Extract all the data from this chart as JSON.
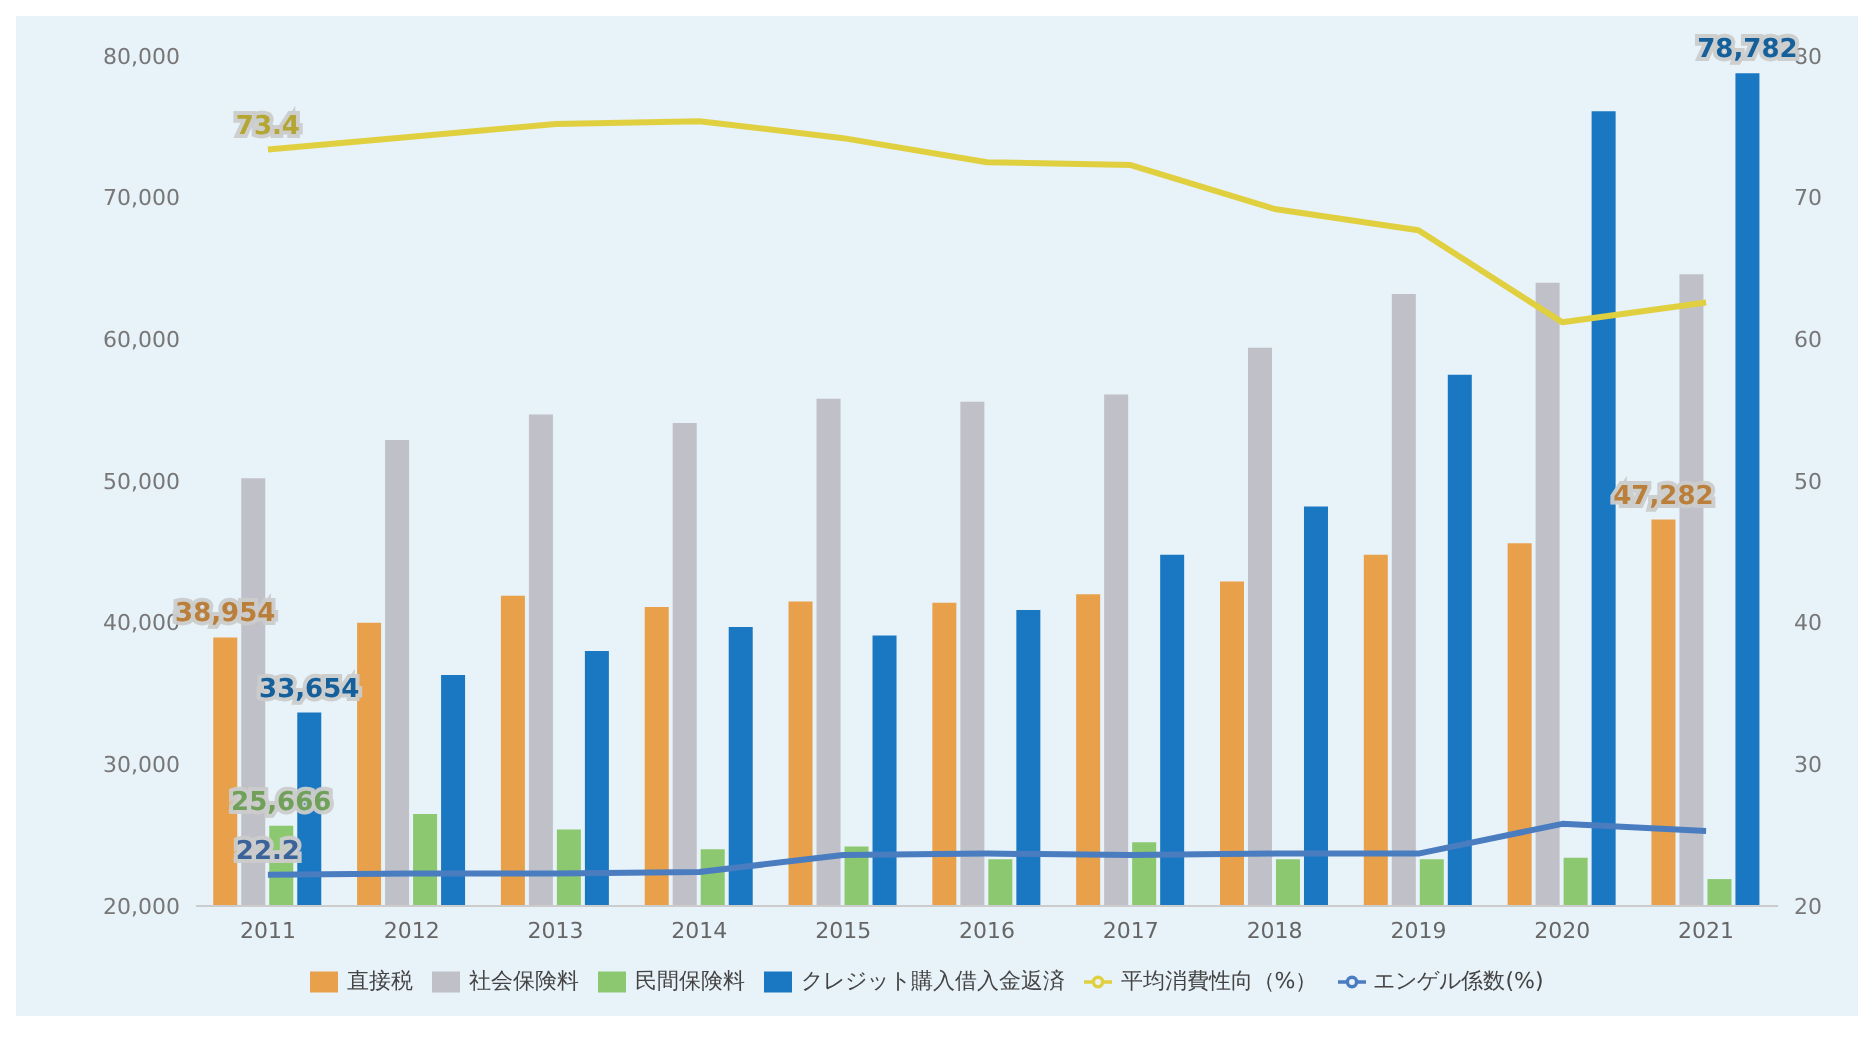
{
  "chart_data": {
    "type": "bar",
    "categories": [
      "2011",
      "2012",
      "2013",
      "2014",
      "2015",
      "2016",
      "2017",
      "2018",
      "2019",
      "2020",
      "2021"
    ],
    "series": [
      {
        "name": "直接税",
        "color": "#e8a04a",
        "values": [
          38954,
          40000,
          41900,
          41100,
          41500,
          41400,
          42000,
          42900,
          44800,
          45600,
          47282
        ],
        "value_labels": [
          "38,954",
          null,
          null,
          null,
          null,
          null,
          null,
          null,
          null,
          null,
          "47,282"
        ]
      },
      {
        "name": "社会保険料",
        "color": "#c0c0c8",
        "values": [
          50200,
          52900,
          54700,
          54100,
          55800,
          55600,
          56100,
          59400,
          63200,
          64000,
          64600
        ]
      },
      {
        "name": "民間保険料",
        "color": "#8cc870",
        "values": [
          25666,
          26500,
          25400,
          24000,
          24200,
          23300,
          24500,
          23300,
          23300,
          23400,
          21900
        ],
        "value_labels": [
          "25,666",
          null,
          null,
          null,
          null,
          null,
          null,
          null,
          null,
          null,
          null
        ]
      },
      {
        "name": "クレジット購入借入金返済",
        "color": "#1a78c2",
        "values": [
          33654,
          36300,
          38000,
          39700,
          39100,
          40900,
          44800,
          48200,
          57500,
          76100,
          78782
        ],
        "value_labels": [
          "33,654",
          null,
          null,
          null,
          null,
          null,
          null,
          null,
          null,
          null,
          "78,782"
        ]
      },
      {
        "name": "平均消費性向（%）",
        "type": "line",
        "axis": "y2",
        "color": "#e0d040",
        "values": [
          73.4,
          74.3,
          75.2,
          75.4,
          74.2,
          72.5,
          72.3,
          69.2,
          67.7,
          61.2,
          62.6
        ],
        "value_labels": [
          "73.4",
          null,
          null,
          null,
          null,
          null,
          null,
          null,
          null,
          null,
          null
        ]
      },
      {
        "name": "エンゲル係数(%)",
        "type": "line",
        "axis": "y2",
        "color": "#4a7cc0",
        "values": [
          22.2,
          22.3,
          22.3,
          22.4,
          23.6,
          23.7,
          23.6,
          23.7,
          23.7,
          25.8,
          25.3
        ],
        "value_labels": [
          "22.2",
          null,
          null,
          null,
          null,
          null,
          null,
          null,
          null,
          null,
          null
        ]
      }
    ],
    "ylim": [
      20000,
      80000
    ],
    "yticks": [
      {
        "value": 20000,
        "label": "20,000"
      },
      {
        "value": 30000,
        "label": "30,000"
      },
      {
        "value": 40000,
        "label": "40,000"
      },
      {
        "value": 50000,
        "label": "50,000"
      },
      {
        "value": 60000,
        "label": "60,000"
      },
      {
        "value": 70000,
        "label": "70,000"
      },
      {
        "value": 80000,
        "label": "80,000"
      }
    ],
    "y2lim": [
      20,
      80
    ],
    "y2ticks": [
      20,
      30,
      40,
      50,
      60,
      70,
      80
    ],
    "legend": "bottom",
    "marker": "none",
    "line_style": "solid"
  }
}
